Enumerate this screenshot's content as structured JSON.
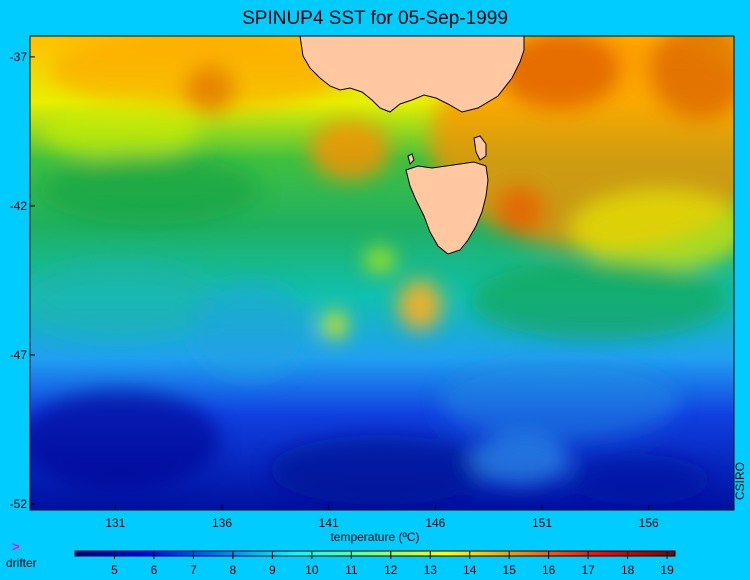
{
  "title": "SPINUP4 SST for 05-Sep-1999",
  "credit": "CSIRO",
  "legend": {
    "drifter_symbol": ">",
    "drifter_label": "drifter",
    "drifter_color": "#ff00ff"
  },
  "colorbar": {
    "label": "temperature (ºC)",
    "range": [
      4,
      19.2
    ],
    "ticks": [
      "5",
      "6",
      "7",
      "8",
      "9",
      "10",
      "11",
      "12",
      "13",
      "14",
      "15",
      "16",
      "17",
      "18",
      "19"
    ],
    "colormap": [
      "#00007f",
      "#0000ff",
      "#0080ff",
      "#00ffff",
      "#7fff7f",
      "#ffff00",
      "#ff8000",
      "#ff0000",
      "#7f0000"
    ]
  },
  "map": {
    "lon_range": [
      127,
      160
    ],
    "lat_range": [
      -52.2,
      -36.3
    ],
    "lon_ticks": [
      "131",
      "136",
      "141",
      "146",
      "151",
      "156"
    ],
    "lat_ticks": [
      "-37",
      "-42",
      "-47",
      "-52"
    ],
    "land_color": "#ffc8a0",
    "background_color": "#00ccff"
  }
}
